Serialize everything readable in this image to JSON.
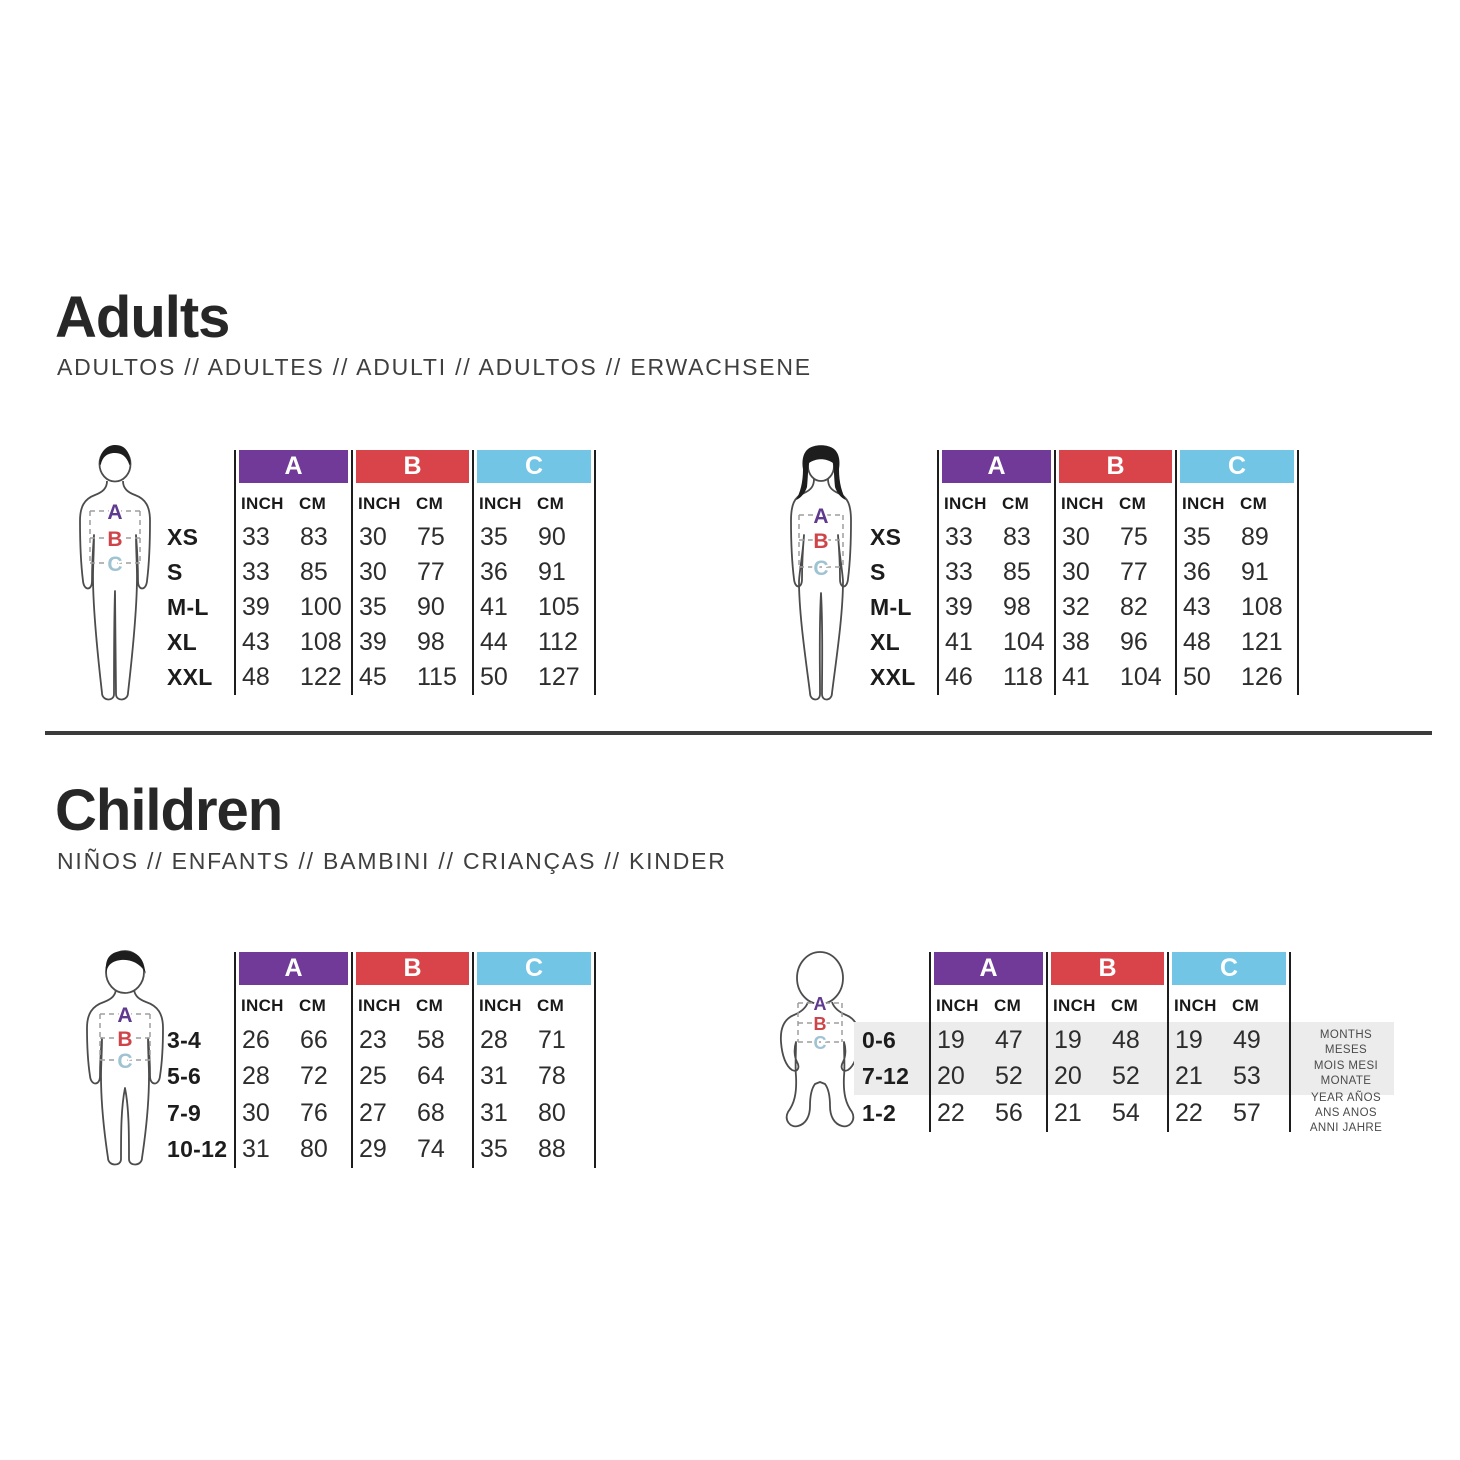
{
  "colors": {
    "group_a": "#713a98",
    "group_b": "#d9444a",
    "group_c": "#72c5e4",
    "figure_a": "#5f3a8e",
    "figure_b": "#cf4449",
    "figure_c": "#9fc3d2",
    "shade": "#ececec",
    "divider": "#3b3b3b"
  },
  "measure_letters": [
    "A",
    "B",
    "C"
  ],
  "units": [
    "INCH",
    "CM"
  ],
  "sections": {
    "adults": {
      "title": "Adults",
      "subtitle": "ADULTOS // ADULTES // ADULTI // ADULTOS // ERWACHSENE"
    },
    "children": {
      "title": "Children",
      "subtitle": "NIÑOS // ENFANTS // BAMBINI // CRIANÇAS // KINDER"
    }
  },
  "tables": {
    "adults_men": {
      "figure": "man",
      "rows": [
        {
          "size": "XS",
          "values": [
            "33",
            "83",
            "30",
            "75",
            "35",
            "90"
          ]
        },
        {
          "size": "S",
          "values": [
            "33",
            "85",
            "30",
            "77",
            "36",
            "91"
          ]
        },
        {
          "size": "M-L",
          "values": [
            "39",
            "100",
            "35",
            "90",
            "41",
            "105"
          ]
        },
        {
          "size": "XL",
          "values": [
            "43",
            "108",
            "39",
            "98",
            "44",
            "112"
          ]
        },
        {
          "size": "XXL",
          "values": [
            "48",
            "122",
            "45",
            "115",
            "50",
            "127"
          ]
        }
      ]
    },
    "adults_women": {
      "figure": "woman",
      "rows": [
        {
          "size": "XS",
          "values": [
            "33",
            "83",
            "30",
            "75",
            "35",
            "89"
          ]
        },
        {
          "size": "S",
          "values": [
            "33",
            "85",
            "30",
            "77",
            "36",
            "91"
          ]
        },
        {
          "size": "M-L",
          "values": [
            "39",
            "98",
            "32",
            "82",
            "43",
            "108"
          ]
        },
        {
          "size": "XL",
          "values": [
            "41",
            "104",
            "38",
            "96",
            "48",
            "121"
          ]
        },
        {
          "size": "XXL",
          "values": [
            "46",
            "118",
            "41",
            "104",
            "50",
            "126"
          ]
        }
      ]
    },
    "children_kids": {
      "figure": "child",
      "rows": [
        {
          "size": "3-4",
          "values": [
            "26",
            "66",
            "23",
            "58",
            "28",
            "71"
          ]
        },
        {
          "size": "5-6",
          "values": [
            "28",
            "72",
            "25",
            "64",
            "31",
            "78"
          ]
        },
        {
          "size": "7-9",
          "values": [
            "30",
            "76",
            "27",
            "68",
            "31",
            "80"
          ]
        },
        {
          "size": "10-12",
          "values": [
            "31",
            "80",
            "29",
            "74",
            "35",
            "88"
          ]
        }
      ]
    },
    "children_baby": {
      "figure": "baby",
      "rows": [
        {
          "size": "0-6",
          "values": [
            "19",
            "47",
            "19",
            "48",
            "19",
            "49"
          ],
          "shaded": true
        },
        {
          "size": "7-12",
          "values": [
            "20",
            "52",
            "20",
            "52",
            "21",
            "53"
          ],
          "shaded": true
        },
        {
          "size": "1-2",
          "values": [
            "22",
            "56",
            "21",
            "54",
            "22",
            "57"
          ],
          "shaded": false
        }
      ],
      "side_notes": [
        {
          "lines": [
            "MONTHS",
            "MESES",
            "MOIS MESI",
            "MONATE"
          ],
          "span_rows": [
            0,
            1
          ]
        },
        {
          "lines": [
            "YEAR AÑOS",
            "ANS ANOS",
            "ANNI JAHRE"
          ],
          "span_rows": [
            2
          ]
        }
      ]
    }
  }
}
